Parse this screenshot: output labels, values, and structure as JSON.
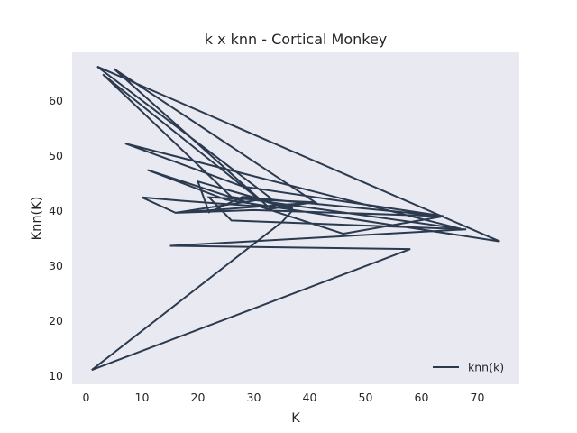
{
  "chart_data": {
    "type": "line",
    "title": "k x knn - Cortical Monkey",
    "xlabel": "K",
    "ylabel": "Knn(K)",
    "xlim": [
      -2.5,
      77.5
    ],
    "ylim": [
      8.4,
      68.8
    ],
    "xticks": [
      0,
      10,
      20,
      30,
      40,
      50,
      60,
      70
    ],
    "yticks": [
      10,
      20,
      30,
      40,
      50,
      60
    ],
    "grid": false,
    "legend_position": "lower right",
    "colors": {
      "line": "#2b3a4e",
      "plot_bg": "#e9e9f2",
      "page_bg": "#ffffff"
    },
    "series": [
      {
        "name": "knn(k)",
        "x": [
          1,
          58,
          15,
          68,
          26,
          22,
          41,
          5,
          33,
          40,
          16,
          33,
          2,
          74,
          25,
          11,
          46,
          64,
          28,
          22,
          20,
          37,
          33,
          17,
          10,
          16,
          30,
          64,
          28,
          7,
          67,
          26,
          3,
          31,
          37,
          35,
          1
        ],
        "y": [
          11,
          33,
          33.6,
          36.6,
          38.2,
          42.4,
          41.5,
          65.8,
          40.3,
          41.4,
          39.6,
          42.3,
          66.2,
          34.4,
          42,
          47.4,
          35.8,
          39,
          42.5,
          39.7,
          45.3,
          40.4,
          40.6,
          41.8,
          42.4,
          39.6,
          40.1,
          39,
          44.4,
          52.2,
          36.7,
          42.5,
          64.8,
          42,
          40.1,
          37.9,
          11
        ]
      }
    ]
  }
}
